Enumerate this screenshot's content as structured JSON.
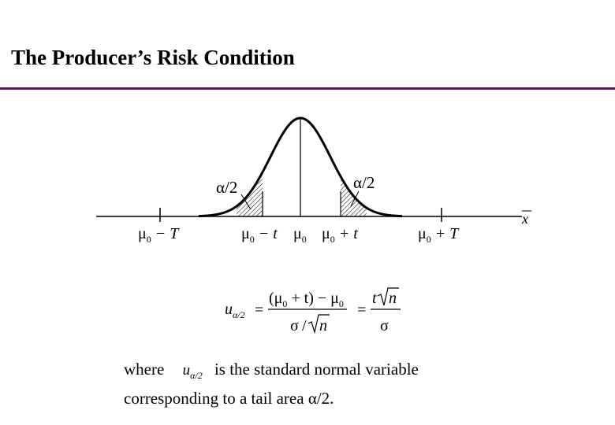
{
  "slide": {
    "title": "The Producer’s Risk Condition",
    "rule_color": "#5b1a5e"
  },
  "figure": {
    "left_tail_label": "α/2",
    "right_tail_label": "α/2",
    "axis_label": "x",
    "tick_labels": {
      "mu0_minus_T": {
        "mu": "μ",
        "sub": "0",
        "rest": " − T"
      },
      "mu0_minus_t": {
        "mu": "μ",
        "sub": "0",
        "rest": " − t"
      },
      "mu0": {
        "mu": "μ",
        "sub": "0"
      },
      "mu0_plus_t": {
        "mu": "μ",
        "sub": "0",
        "rest": " + t"
      },
      "mu0_plus_T": {
        "mu": "μ",
        "sub": "0",
        "rest": " + T"
      }
    }
  },
  "formula": {
    "lhs_u": "u",
    "lhs_sub": "α/2",
    "num_open": "(μ",
    "num_sub0": "0",
    "num_plus_t": " + t) − μ",
    "num_sub0b": "0",
    "den_sigma": "σ",
    "den_slash": "/",
    "den_n": "n",
    "eq": "=",
    "rhs_t": "t",
    "rhs_n": "n",
    "rhs_sigma": "σ"
  },
  "note": {
    "where": "where",
    "u": "u",
    "u_sub": "α/2",
    "line1_rest": "is the standard normal variable",
    "line2": "corresponding to a tail area",
    "tail": "α/2",
    "period": "."
  }
}
